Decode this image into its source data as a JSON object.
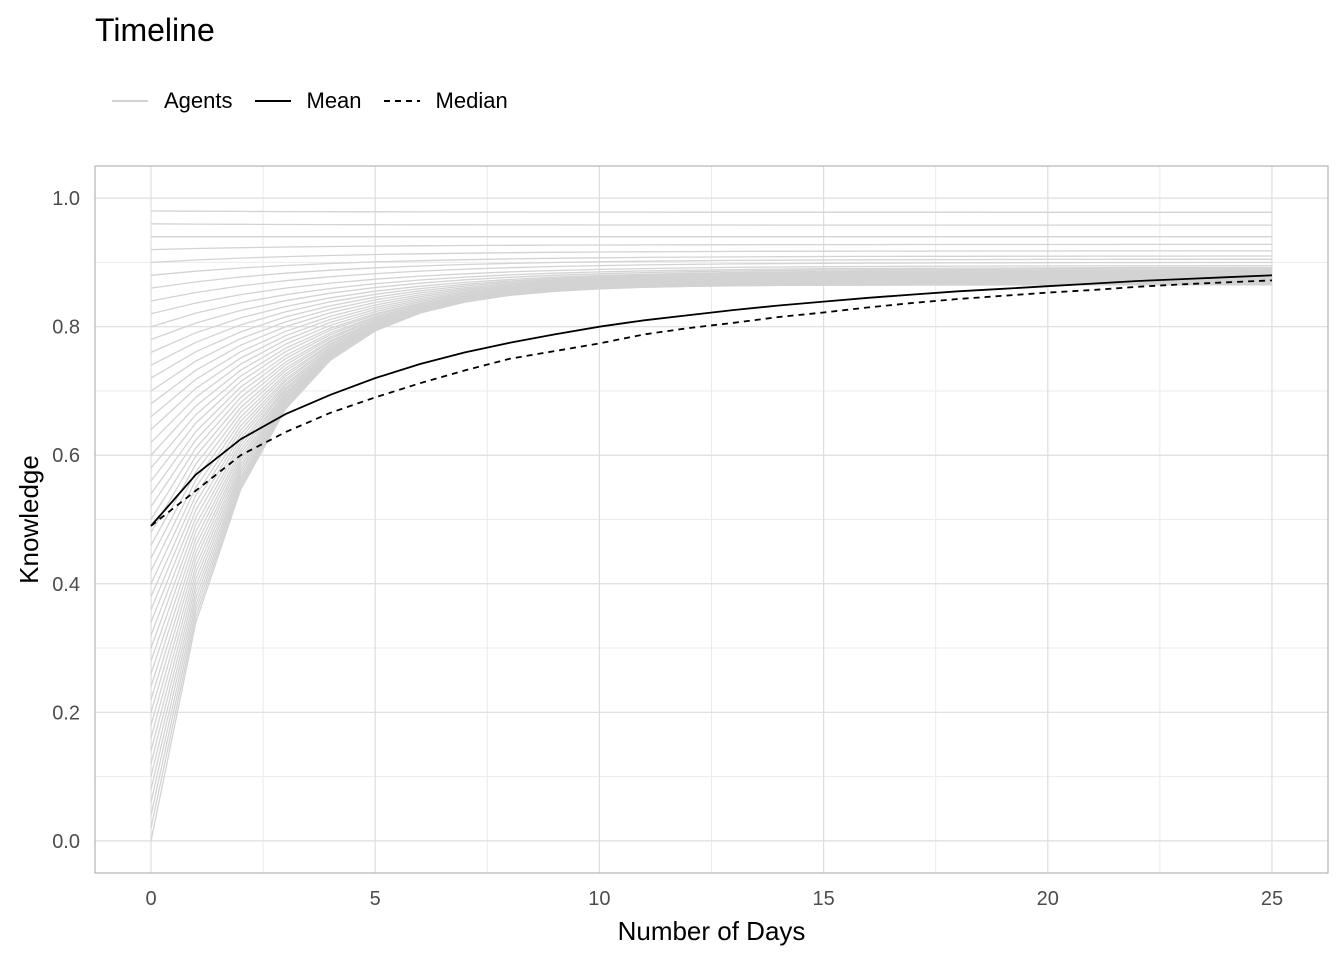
{
  "chart_data": {
    "type": "line",
    "title": "Timeline",
    "xlabel": "Number of Days",
    "ylabel": "Knowledge",
    "xlim": [
      -1.25,
      26.25
    ],
    "ylim": [
      -0.05,
      1.05
    ],
    "x_ticks": [
      0,
      5,
      10,
      15,
      20,
      25
    ],
    "y_ticks": [
      0.0,
      0.2,
      0.4,
      0.6,
      0.8,
      1.0
    ],
    "x_tick_labels": [
      "0",
      "5",
      "10",
      "15",
      "20",
      "25"
    ],
    "y_tick_labels": [
      "0.0",
      "0.2",
      "0.4",
      "0.6",
      "0.8",
      "1.0"
    ],
    "grid": true,
    "legend_position": "top-left",
    "legend": [
      {
        "label": "Agents",
        "style": "solid",
        "color": "#d3d3d3"
      },
      {
        "label": "Mean",
        "style": "solid",
        "color": "#000000"
      },
      {
        "label": "Median",
        "style": "dashed",
        "color": "#000000"
      }
    ],
    "agents": {
      "color": "#d3d3d3",
      "days": 25,
      "start_values": [
        0.0,
        0.02,
        0.04,
        0.06,
        0.08,
        0.1,
        0.12,
        0.14,
        0.16,
        0.18,
        0.2,
        0.22,
        0.24,
        0.26,
        0.28,
        0.3,
        0.32,
        0.34,
        0.36,
        0.38,
        0.4,
        0.42,
        0.44,
        0.46,
        0.48,
        0.5,
        0.52,
        0.54,
        0.56,
        0.58,
        0.6,
        0.62,
        0.64,
        0.66,
        0.68,
        0.7,
        0.72,
        0.74,
        0.76,
        0.78,
        0.8,
        0.82,
        0.84,
        0.86,
        0.88,
        0.9,
        0.92,
        0.94,
        0.96,
        0.98
      ],
      "end_values": [
        0.865,
        0.865,
        0.866,
        0.866,
        0.867,
        0.867,
        0.868,
        0.868,
        0.869,
        0.869,
        0.87,
        0.87,
        0.871,
        0.871,
        0.872,
        0.872,
        0.873,
        0.873,
        0.874,
        0.874,
        0.875,
        0.875,
        0.876,
        0.876,
        0.877,
        0.877,
        0.878,
        0.878,
        0.879,
        0.879,
        0.88,
        0.881,
        0.882,
        0.883,
        0.884,
        0.885,
        0.886,
        0.887,
        0.888,
        0.89,
        0.892,
        0.895,
        0.9,
        0.905,
        0.91,
        0.918,
        0.928,
        0.94,
        0.958,
        0.978
      ]
    },
    "series": [
      {
        "name": "Mean",
        "style": "solid",
        "x": [
          0,
          1,
          2,
          3,
          4,
          5,
          6,
          7,
          8,
          9,
          10,
          11,
          12,
          13,
          14,
          15,
          16,
          17,
          18,
          19,
          20,
          21,
          22,
          23,
          24,
          25
        ],
        "values": [
          0.49,
          0.57,
          0.625,
          0.664,
          0.694,
          0.72,
          0.742,
          0.76,
          0.775,
          0.788,
          0.8,
          0.81,
          0.818,
          0.826,
          0.833,
          0.839,
          0.845,
          0.85,
          0.855,
          0.859,
          0.863,
          0.867,
          0.871,
          0.874,
          0.877,
          0.88
        ]
      },
      {
        "name": "Median",
        "style": "dashed",
        "x": [
          0,
          1,
          2,
          3,
          4,
          5,
          6,
          7,
          8,
          9,
          10,
          11,
          12,
          13,
          14,
          15,
          16,
          17,
          18,
          19,
          20,
          21,
          22,
          23,
          24,
          25
        ],
        "values": [
          0.49,
          0.545,
          0.6,
          0.636,
          0.666,
          0.69,
          0.712,
          0.732,
          0.75,
          0.762,
          0.774,
          0.788,
          0.798,
          0.806,
          0.815,
          0.822,
          0.83,
          0.837,
          0.843,
          0.848,
          0.853,
          0.857,
          0.862,
          0.866,
          0.869,
          0.872
        ]
      }
    ]
  }
}
